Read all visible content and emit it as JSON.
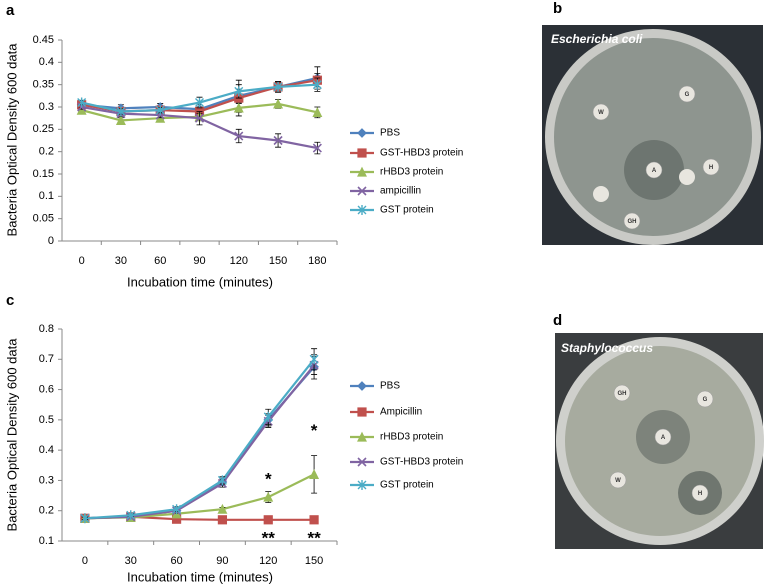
{
  "panel_labels": [
    "a",
    "b",
    "c",
    "d"
  ],
  "photos": [
    {
      "label": "Escherichia coli",
      "disks": [
        "W",
        "G",
        "A",
        "H",
        "GH"
      ]
    },
    {
      "label": "Staphylococcus",
      "disks": [
        "GH",
        "G",
        "A",
        "W",
        "H"
      ]
    }
  ],
  "chart_data": [
    {
      "type": "line",
      "x_label": "Incubation time (minutes)",
      "y_label": "Bacteria Optical Density 600 data",
      "categories": [
        "0",
        "30",
        "60",
        "90",
        "120",
        "150",
        "180"
      ],
      "ylim": [
        0,
        0.45
      ],
      "yticks": [
        0,
        0.05,
        0.1,
        0.15,
        0.2,
        0.25,
        0.3,
        0.35,
        0.4,
        0.45
      ],
      "series": [
        {
          "name": "PBS",
          "color": "#4f81bd",
          "marker": "diamond",
          "values": [
            0.305,
            0.297,
            0.3,
            0.295,
            0.325,
            0.345,
            0.365
          ],
          "errors": [
            0.005,
            0.008,
            0.008,
            0.01,
            0.015,
            0.01,
            0.025
          ]
        },
        {
          "name": "GST-HBD3 protein",
          "color": "#c0504d",
          "marker": "square",
          "values": [
            0.305,
            0.29,
            0.293,
            0.29,
            0.32,
            0.345,
            0.36
          ],
          "errors": [
            0.005,
            0.006,
            0.006,
            0.01,
            0.04,
            0.012,
            0.015
          ]
        },
        {
          "name": "rHBD3 protein",
          "color": "#9bbb59",
          "marker": "triangle",
          "values": [
            0.293,
            0.27,
            0.275,
            0.278,
            0.298,
            0.307,
            0.288
          ],
          "errors": [
            0.005,
            0.006,
            0.006,
            0.008,
            0.01,
            0.01,
            0.012
          ]
        },
        {
          "name": "ampicillin",
          "color": "#8064a2",
          "marker": "x",
          "values": [
            0.3,
            0.285,
            0.282,
            0.275,
            0.235,
            0.225,
            0.208
          ],
          "errors": [
            0.005,
            0.006,
            0.006,
            0.015,
            0.015,
            0.015,
            0.013
          ]
        },
        {
          "name": "GST protein",
          "color": "#4bacc6",
          "marker": "star",
          "values": [
            0.31,
            0.29,
            0.293,
            0.31,
            0.335,
            0.345,
            0.35
          ],
          "errors": [
            0.005,
            0.006,
            0.006,
            0.012,
            0.015,
            0.012,
            0.015
          ]
        }
      ]
    },
    {
      "type": "line",
      "x_label": "Incubation time (minutes)",
      "y_label": "Bacteria Optical Density 600 data",
      "categories": [
        "0",
        "30",
        "60",
        "90",
        "120",
        "150"
      ],
      "ylim": [
        0.1,
        0.8
      ],
      "yticks": [
        0.1,
        0.2,
        0.3,
        0.4,
        0.5,
        0.6,
        0.7,
        0.8
      ],
      "series": [
        {
          "name": "PBS",
          "color": "#4f81bd",
          "marker": "diamond",
          "values": [
            0.175,
            0.18,
            0.2,
            0.295,
            0.5,
            0.675
          ],
          "errors": [
            0.004,
            0.005,
            0.008,
            0.012,
            0.02,
            0.04
          ]
        },
        {
          "name": "Ampicillin",
          "color": "#c0504d",
          "marker": "square",
          "values": [
            0.175,
            0.18,
            0.172,
            0.17,
            0.17,
            0.17
          ],
          "errors": [
            0.003,
            0.003,
            0.003,
            0.003,
            0.003,
            0.003
          ]
        },
        {
          "name": "rHBD3 protein",
          "color": "#9bbb59",
          "marker": "triangle",
          "values": [
            0.175,
            0.178,
            0.19,
            0.205,
            0.245,
            0.32
          ],
          "errors": [
            0.004,
            0.004,
            0.005,
            0.006,
            0.018,
            0.062
          ]
        },
        {
          "name": "GST-HBD3 protein",
          "color": "#8064a2",
          "marker": "x",
          "values": [
            0.175,
            0.18,
            0.2,
            0.29,
            0.495,
            0.68
          ],
          "errors": [
            0.004,
            0.005,
            0.008,
            0.012,
            0.02,
            0.03
          ]
        },
        {
          "name": "GST protein",
          "color": "#4bacc6",
          "marker": "star",
          "values": [
            0.175,
            0.185,
            0.205,
            0.3,
            0.51,
            0.7
          ],
          "errors": [
            0.004,
            0.005,
            0.008,
            0.012,
            0.025,
            0.035
          ]
        }
      ],
      "annotations": [
        "*",
        "**",
        "*",
        "**"
      ]
    }
  ]
}
